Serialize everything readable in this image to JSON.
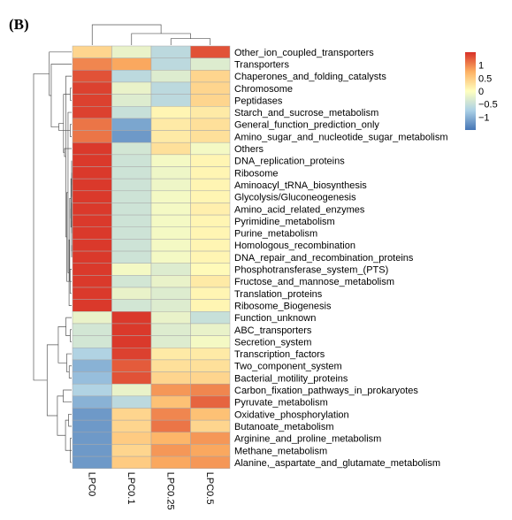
{
  "panel_label": "(B)",
  "chart_data": {
    "type": "heatmap",
    "columns": [
      "LPC0",
      "LPC0.1",
      "LPC0.25",
      "LPC0.5"
    ],
    "rows": [
      {
        "label": "Other_ion_coupled_transporters",
        "values": [
          0.4,
          -0.2,
          -0.6,
          1.3
        ]
      },
      {
        "label": "Transporters",
        "values": [
          1.0,
          0.8,
          -0.6,
          -0.3
        ]
      },
      {
        "label": "Chaperones_and_folding_catalysts",
        "values": [
          1.3,
          -0.6,
          -0.3,
          0.4
        ]
      },
      {
        "label": "Chromosome",
        "values": [
          1.4,
          -0.2,
          -0.6,
          0.4
        ]
      },
      {
        "label": "Peptidases",
        "values": [
          1.4,
          -0.3,
          -0.6,
          0.4
        ]
      },
      {
        "label": "Starch_and_sucrose_metabolism",
        "values": [
          1.4,
          -0.5,
          0.1,
          0.2
        ]
      },
      {
        "label": "General_function_prediction_only",
        "values": [
          1.1,
          -1.1,
          0.2,
          0.3
        ]
      },
      {
        "label": "Amino_sugar_and_nucleotide_sugar_metabolism",
        "values": [
          1.1,
          -1.2,
          0.2,
          0.3
        ]
      },
      {
        "label": "Others",
        "values": [
          1.45,
          -0.4,
          0.3,
          -0.1
        ]
      },
      {
        "label": "DNA_replication_proteins",
        "values": [
          1.45,
          -0.45,
          -0.1,
          0.1
        ]
      },
      {
        "label": "Ribosome",
        "values": [
          1.45,
          -0.45,
          -0.15,
          0.1
        ]
      },
      {
        "label": "Aminoacyl_tRNA_biosynthesis",
        "values": [
          1.45,
          -0.45,
          -0.15,
          0.1
        ]
      },
      {
        "label": "Glycolysis/Gluconeogenesis",
        "values": [
          1.45,
          -0.45,
          -0.1,
          0.1
        ]
      },
      {
        "label": "Amino_acid_related_enzymes",
        "values": [
          1.45,
          -0.45,
          -0.1,
          0.15
        ]
      },
      {
        "label": "Pyrimidine_metabolism",
        "values": [
          1.45,
          -0.45,
          -0.1,
          0.1
        ]
      },
      {
        "label": "Purine_metabolism",
        "values": [
          1.45,
          -0.45,
          -0.1,
          0.1
        ]
      },
      {
        "label": "Homologous_recombination",
        "values": [
          1.45,
          -0.45,
          -0.1,
          0.1
        ]
      },
      {
        "label": "DNA_repair_and_recombination_proteins",
        "values": [
          1.45,
          -0.45,
          -0.1,
          0.1
        ]
      },
      {
        "label": "Phosphotransferase_system_(PTS)",
        "values": [
          1.45,
          -0.1,
          -0.3,
          0.05
        ]
      },
      {
        "label": "Fructose_and_mannose_metabolism",
        "values": [
          1.45,
          -0.4,
          -0.2,
          0.2
        ]
      },
      {
        "label": "Translation_proteins",
        "values": [
          1.45,
          -0.2,
          -0.3,
          0.1
        ]
      },
      {
        "label": "Ribosome_Biogenesis",
        "values": [
          1.45,
          -0.4,
          -0.3,
          0.1
        ]
      },
      {
        "label": "Function_unknown",
        "values": [
          -0.2,
          1.45,
          -0.2,
          -0.5
        ]
      },
      {
        "label": "ABC_transporters",
        "values": [
          -0.4,
          1.45,
          -0.3,
          -0.2
        ]
      },
      {
        "label": "Secretion_system",
        "values": [
          -0.4,
          1.45,
          -0.3,
          -0.1
        ]
      },
      {
        "label": "Transcription_factors",
        "values": [
          -0.7,
          1.4,
          0.2,
          0.2
        ]
      },
      {
        "label": "Two_component_system",
        "values": [
          -1.0,
          1.25,
          0.3,
          0.3
        ]
      },
      {
        "label": "Bacterial_motility_proteins",
        "values": [
          -0.9,
          1.3,
          0.4,
          0.4
        ]
      },
      {
        "label": "Carbon_fixation_pathways_in_prokaryotes",
        "values": [
          -0.7,
          -0.2,
          0.9,
          1.0
        ]
      },
      {
        "label": "Pyruvate_metabolism",
        "values": [
          -1.0,
          -0.6,
          0.6,
          1.2
        ]
      },
      {
        "label": "Oxidative_phosphorylation",
        "values": [
          -1.2,
          0.4,
          1.0,
          0.6
        ]
      },
      {
        "label": "Butanoate_metabolism",
        "values": [
          -1.2,
          0.4,
          1.1,
          0.4
        ]
      },
      {
        "label": "Arginine_and_proline_metabolism",
        "values": [
          -1.2,
          0.5,
          0.7,
          0.9
        ]
      },
      {
        "label": "Methane_metabolism",
        "values": [
          -1.2,
          0.4,
          0.9,
          0.8
        ]
      },
      {
        "label": "Alanine,_aspartate_and_glutamate_metabolism",
        "values": [
          -1.2,
          0.5,
          0.8,
          0.9
        ]
      }
    ],
    "color_scale": {
      "min": -1.5,
      "max": 1.5,
      "stops": [
        {
          "v": -1.5,
          "color": "#4575b4"
        },
        {
          "v": -0.75,
          "color": "#abd0e6"
        },
        {
          "v": 0,
          "color": "#ffffbf"
        },
        {
          "v": 0.75,
          "color": "#fdb163"
        },
        {
          "v": 1.5,
          "color": "#d73027"
        }
      ]
    },
    "legend": {
      "ticks": [
        1,
        0.5,
        0,
        -0.5,
        -1
      ],
      "tick_labels": [
        "1",
        "0.5",
        "0",
        "−0.5",
        "−1"
      ],
      "position": "right"
    }
  }
}
